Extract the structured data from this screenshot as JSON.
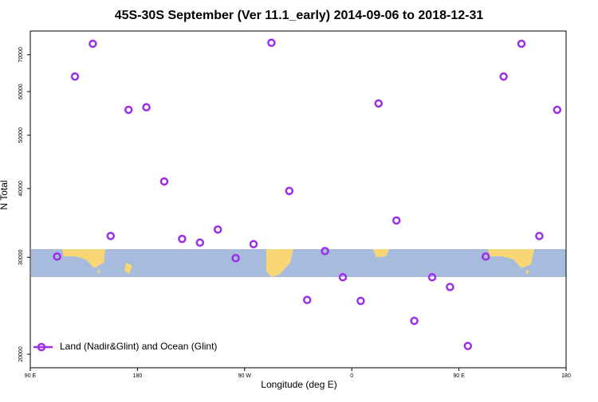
{
  "chart_data": {
    "type": "scatter",
    "title": "45S-30S September (Ver 11.1_early)   2014-09-06 to 2018-12-31",
    "x_label": "Longitude (deg E)",
    "y_label": "N Total",
    "series": [
      {
        "name": "Land (Nadir&Glint) and Ocean (Glint)",
        "color": "#9b2fe6",
        "x": [
          112.5,
          127.5,
          142.5,
          157.5,
          172.5,
          187.5,
          202.5,
          217.5,
          232.5,
          247.5,
          262.5,
          277.5,
          292.5,
          307.5,
          322.5,
          337.5,
          352.5,
          367.5,
          382.5,
          397.5,
          412.5,
          427.5,
          442.5,
          457.5,
          472.5,
          487.5,
          502.5,
          517.5,
          532.5
        ],
        "values": [
          30100,
          63900,
          73300,
          32800,
          55600,
          56200,
          41200,
          32400,
          31900,
          33700,
          29900,
          31700,
          73600,
          39600,
          25100,
          30800,
          27600,
          25000,
          57100,
          35000,
          23000,
          27600,
          26500,
          20700,
          30100,
          63900,
          73300,
          32800,
          55600
        ]
      }
    ],
    "xlim": [
      90,
      540
    ],
    "xticks": [
      {
        "value": 90,
        "label": "90 E"
      },
      180,
      {
        "value": 270,
        "label": "90 W"
      },
      {
        "value": 360,
        "label": "0"
      },
      {
        "value": 450,
        "label": "90 E"
      },
      {
        "value": 540,
        "label": "180"
      }
    ],
    "ylim": [
      18900,
      77300
    ],
    "yticks": [
      20000,
      30000,
      40000,
      50000,
      60000,
      70000
    ],
    "y_scale": "log",
    "legend_position": "bottom left"
  }
}
